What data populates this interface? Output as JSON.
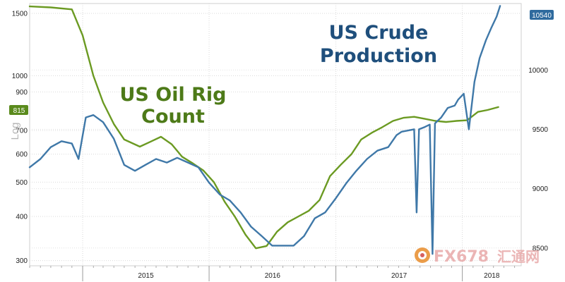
{
  "chart_data": {
    "type": "line",
    "title": "",
    "xlabel": "",
    "x_ticks": [
      "2015",
      "2016",
      "2017",
      "2018"
    ],
    "left_axis": {
      "label": "Log",
      "scale": "log",
      "ticks": [
        300,
        400,
        500,
        600,
        700,
        900,
        1000,
        1500
      ],
      "range": [
        290,
        1600
      ]
    },
    "right_axis": {
      "scale": "linear",
      "ticks": [
        8500,
        9000,
        9500,
        10000
      ],
      "range": [
        8350,
        10560
      ]
    },
    "last_value_badges": {
      "left": {
        "text": "815",
        "color": "#5a8a1c"
      },
      "right": {
        "text": "10540",
        "color": "#2f6b9e"
      }
    },
    "annotations": {
      "rig_title_line1": "US Oil Rig",
      "rig_title_line2": "Count",
      "prod_title_line1": "US Crude",
      "prod_title_line2": "Production"
    },
    "grid": true,
    "series": [
      {
        "name": "US Oil Rig Count",
        "axis": "left",
        "color": "#6b9a22",
        "points": [
          [
            "2014-08-01",
            1570
          ],
          [
            "2014-10-01",
            1560
          ],
          [
            "2014-12-01",
            1540
          ],
          [
            "2015-01-01",
            1300
          ],
          [
            "2015-02-01",
            1000
          ],
          [
            "2015-03-01",
            840
          ],
          [
            "2015-04-01",
            730
          ],
          [
            "2015-05-01",
            660
          ],
          [
            "2015-06-15",
            630
          ],
          [
            "2015-07-15",
            650
          ],
          [
            "2015-08-15",
            672
          ],
          [
            "2015-09-15",
            640
          ],
          [
            "2015-10-15",
            590
          ],
          [
            "2015-11-15",
            565
          ],
          [
            "2015-12-15",
            540
          ],
          [
            "2016-01-15",
            500
          ],
          [
            "2016-02-15",
            440
          ],
          [
            "2016-03-15",
            400
          ],
          [
            "2016-04-15",
            355
          ],
          [
            "2016-05-15",
            325
          ],
          [
            "2016-06-15",
            330
          ],
          [
            "2016-07-15",
            362
          ],
          [
            "2016-08-15",
            385
          ],
          [
            "2016-09-15",
            400
          ],
          [
            "2016-10-15",
            415
          ],
          [
            "2016-11-15",
            445
          ],
          [
            "2016-12-15",
            520
          ],
          [
            "2017-01-15",
            560
          ],
          [
            "2017-02-15",
            600
          ],
          [
            "2017-03-15",
            660
          ],
          [
            "2017-04-15",
            690
          ],
          [
            "2017-05-15",
            715
          ],
          [
            "2017-06-15",
            745
          ],
          [
            "2017-07-15",
            760
          ],
          [
            "2017-08-15",
            765
          ],
          [
            "2017-09-15",
            755
          ],
          [
            "2017-10-15",
            745
          ],
          [
            "2017-11-15",
            740
          ],
          [
            "2017-12-15",
            745
          ],
          [
            "2018-01-15",
            748
          ],
          [
            "2018-02-15",
            790
          ],
          [
            "2018-03-15",
            800
          ],
          [
            "2018-04-15",
            815
          ]
        ]
      },
      {
        "name": "US Crude Production",
        "axis": "right",
        "color": "#3f78a8",
        "points": [
          [
            "2014-08-01",
            9180
          ],
          [
            "2014-09-01",
            9250
          ],
          [
            "2014-10-01",
            9350
          ],
          [
            "2014-11-01",
            9400
          ],
          [
            "2014-12-01",
            9380
          ],
          [
            "2014-12-20",
            9250
          ],
          [
            "2015-01-10",
            9600
          ],
          [
            "2015-02-01",
            9620
          ],
          [
            "2015-03-01",
            9560
          ],
          [
            "2015-04-01",
            9420
          ],
          [
            "2015-05-01",
            9200
          ],
          [
            "2015-06-01",
            9150
          ],
          [
            "2015-07-01",
            9200
          ],
          [
            "2015-08-01",
            9250
          ],
          [
            "2015-09-01",
            9220
          ],
          [
            "2015-10-01",
            9260
          ],
          [
            "2015-11-01",
            9220
          ],
          [
            "2015-12-01",
            9180
          ],
          [
            "2016-01-01",
            9050
          ],
          [
            "2016-02-01",
            8950
          ],
          [
            "2016-03-01",
            8900
          ],
          [
            "2016-04-01",
            8800
          ],
          [
            "2016-05-01",
            8680
          ],
          [
            "2016-06-01",
            8600
          ],
          [
            "2016-07-01",
            8520
          ],
          [
            "2016-08-01",
            8520
          ],
          [
            "2016-09-01",
            8520
          ],
          [
            "2016-10-01",
            8600
          ],
          [
            "2016-11-01",
            8750
          ],
          [
            "2016-12-01",
            8800
          ],
          [
            "2017-01-01",
            8920
          ],
          [
            "2017-02-01",
            9050
          ],
          [
            "2017-03-01",
            9150
          ],
          [
            "2017-04-01",
            9250
          ],
          [
            "2017-05-01",
            9320
          ],
          [
            "2017-06-01",
            9350
          ],
          [
            "2017-06-25",
            9450
          ],
          [
            "2017-07-10",
            9480
          ],
          [
            "2017-08-15",
            9500
          ],
          [
            "2017-08-22",
            8800
          ],
          [
            "2017-08-29",
            9500
          ],
          [
            "2017-09-15",
            9520
          ],
          [
            "2017-09-29",
            9540
          ],
          [
            "2017-10-07",
            8450
          ],
          [
            "2017-10-14",
            9550
          ],
          [
            "2017-11-01",
            9600
          ],
          [
            "2017-11-20",
            9680
          ],
          [
            "2017-12-10",
            9700
          ],
          [
            "2017-12-20",
            9750
          ],
          [
            "2018-01-05",
            9800
          ],
          [
            "2018-01-20",
            9500
          ],
          [
            "2018-02-05",
            9900
          ],
          [
            "2018-02-20",
            10100
          ],
          [
            "2018-03-10",
            10250
          ],
          [
            "2018-03-25",
            10350
          ],
          [
            "2018-04-10",
            10450
          ],
          [
            "2018-04-20",
            10540
          ]
        ]
      }
    ]
  },
  "watermark": {
    "text_en": "FX678",
    "text_cn": "汇通网",
    "color": "#e8a9a9"
  }
}
